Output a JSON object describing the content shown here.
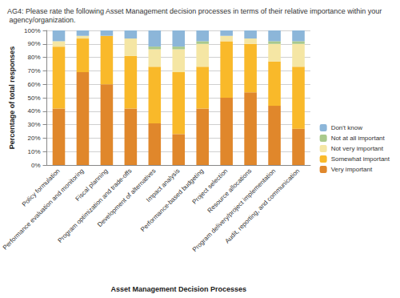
{
  "chart_data": {
    "type": "bar",
    "title": "AG4: Please rate the following Asset Management decision processes in terms of their relative importance within your agency/organization.",
    "x_label": "Asset Management Decision Processes",
    "y_label": "Percentage of total responses",
    "categories": [
      "Policy formulation",
      "Performance evaluation and monitoring",
      "Fiscal planning",
      "Program optimization and trade-offs",
      "Development of alternatives",
      "Impact analysis",
      "Performance-based budgeting",
      "Project selection",
      "Resource allocations",
      "Program delivery/project implementation",
      "Audit, reporting, and communication"
    ],
    "series": [
      {
        "name": "Very important",
        "color": "#e0872b",
        "values": [
          42,
          69,
          60,
          42,
          31,
          23,
          42,
          50,
          54,
          44,
          27
        ]
      },
      {
        "name": "Somewhat important",
        "color": "#f9b92a",
        "values": [
          46,
          25,
          36,
          39,
          42,
          46,
          31,
          42,
          36,
          33,
          46
        ]
      },
      {
        "name": "Not very important",
        "color": "#f5e6a4",
        "values": [
          4,
          2,
          0,
          13,
          13,
          17,
          17,
          4,
          4,
          13,
          17
        ]
      },
      {
        "name": "Not at all important",
        "color": "#a9c98c",
        "values": [
          0,
          0,
          0,
          0,
          2,
          2,
          2,
          0,
          0,
          2,
          2
        ]
      },
      {
        "name": "Don't know",
        "color": "#8cb6d9",
        "values": [
          8,
          4,
          4,
          6,
          12,
          12,
          8,
          4,
          6,
          8,
          8
        ]
      }
    ],
    "ylim": [
      0,
      100
    ],
    "yticks": [
      {
        "value": 0,
        "label": "0%"
      },
      {
        "value": 10,
        "label": "10%"
      },
      {
        "value": 20,
        "label": "20%"
      },
      {
        "value": 30,
        "label": "30%"
      },
      {
        "value": 40,
        "label": "40%"
      },
      {
        "value": 50,
        "label": "50%"
      },
      {
        "value": 60,
        "label": "60%"
      },
      {
        "value": 70,
        "label": "70%"
      },
      {
        "value": 80,
        "label": "80%"
      },
      {
        "value": 90,
        "label": "90%"
      },
      {
        "value": 100,
        "label": "100%"
      }
    ],
    "stacked": true,
    "grid": true,
    "legend": "right"
  }
}
